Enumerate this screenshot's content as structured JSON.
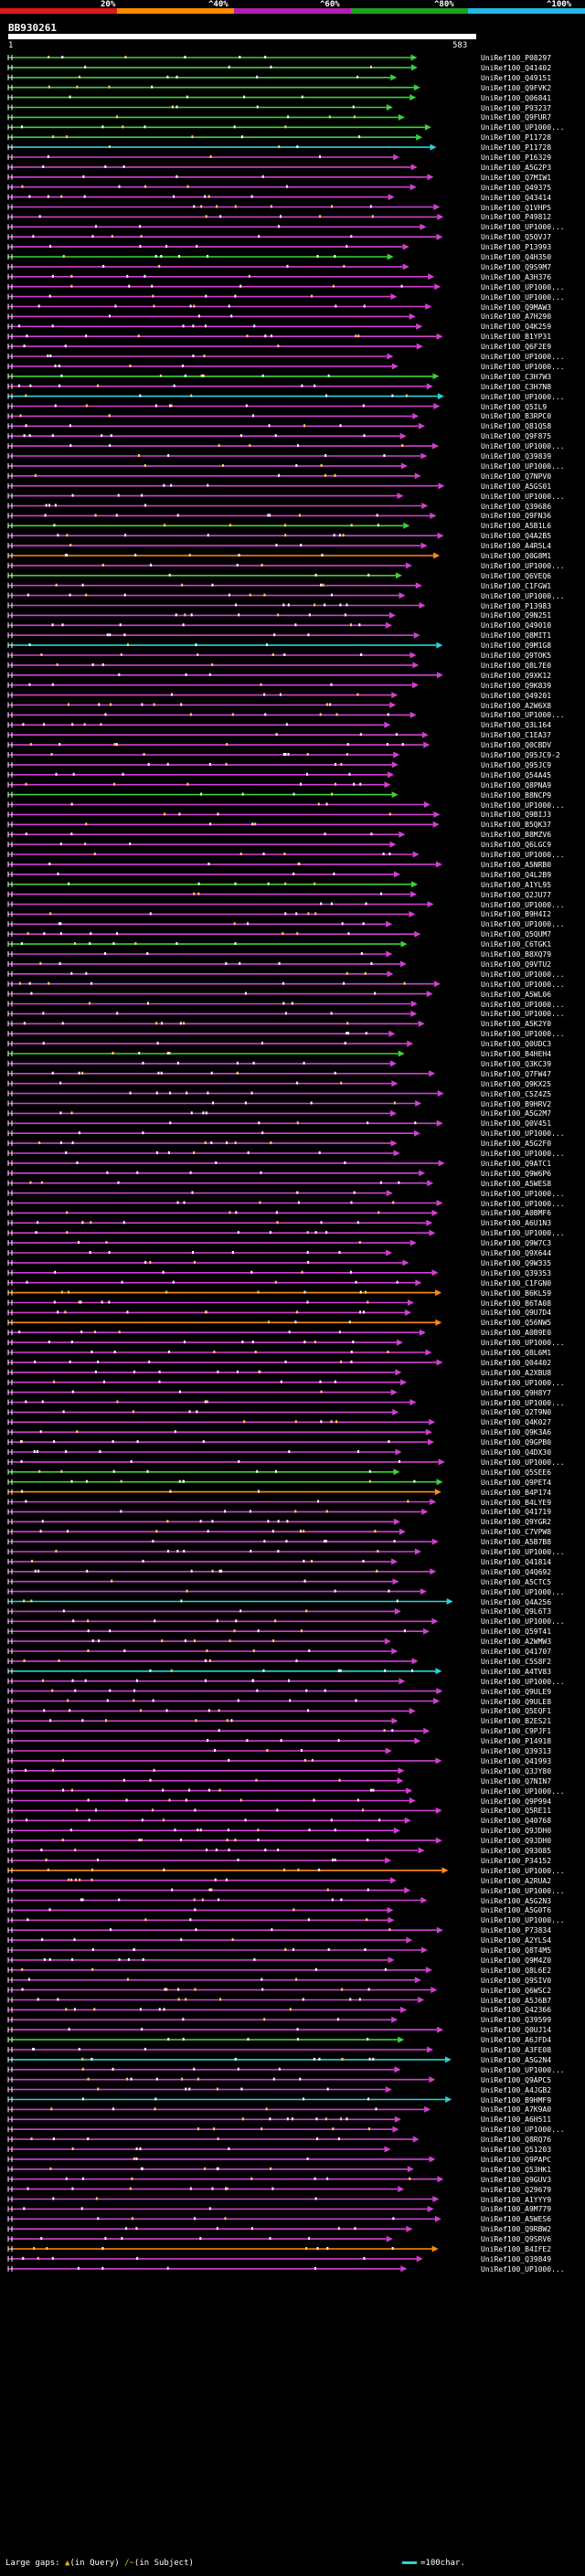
{
  "scale": {
    "labels": [
      "20%",
      "^40%",
      "^60%",
      "^80%",
      "^100%"
    ],
    "colors": [
      "#e01818",
      "#ff8a00",
      "#b020b0",
      "#20a020",
      "#20b8e8"
    ]
  },
  "query": {
    "name": "BB930261",
    "start": "1",
    "end": "583"
  },
  "hits": [
    {
      "label": "UniRef100_P08297",
      "color": "#3ad23a"
    },
    {
      "label": "UniRef100_Q41402",
      "color": "#3ad23a"
    },
    {
      "label": "UniRef100_Q49151",
      "color": "#3ad23a"
    },
    {
      "label": "UniRef100_Q9FVK2",
      "color": "#3ad23a"
    },
    {
      "label": "UniRef100_Q06841",
      "color": "#3ad23a"
    },
    {
      "label": "UniRef100_P93237",
      "color": "#3ad23a"
    },
    {
      "label": "UniRef100_Q9FUR7",
      "color": "#3ad23a"
    },
    {
      "label": "UniRef100_UP1000...",
      "color": "#3ad23a"
    },
    {
      "label": "UniRef100_P11728",
      "color": "#3ad23a"
    },
    {
      "label": "UniRef100_P11728",
      "color": "#2ad4d6"
    },
    {
      "label": "UniRef100_P16329",
      "color": "#d040d0"
    },
    {
      "label": "UniRef100_A5G2P3",
      "color": "#d040d0"
    },
    {
      "label": "UniRef100_Q7MIW1",
      "color": "#d040d0"
    },
    {
      "label": "UniRef100_Q49375",
      "color": "#d040d0"
    },
    {
      "label": "UniRef100_Q43414",
      "color": "#d040d0"
    },
    {
      "label": "UniRef100_Q1VHP5",
      "color": "#d040d0"
    },
    {
      "label": "UniRef100_P49812",
      "color": "#d040d0"
    },
    {
      "label": "UniRef100_UP1000...",
      "color": "#d040d0"
    },
    {
      "label": "UniRef100_Q5QVJ7",
      "color": "#d040d0"
    },
    {
      "label": "UniRef100_P13993",
      "color": "#d040d0"
    },
    {
      "label": "UniRef100_Q4H350",
      "color": "#3ad23a"
    },
    {
      "label": "UniRef100_Q9S9M7",
      "color": "#d040d0"
    },
    {
      "label": "UniRef100_A3H376",
      "color": "#d040d0"
    },
    {
      "label": "UniRef100_UP1000...",
      "color": "#d040d0"
    },
    {
      "label": "UniRef100_UP1000...",
      "color": "#d040d0"
    },
    {
      "label": "UniRef100_Q9MAW3",
      "color": "#d040d0"
    },
    {
      "label": "UniRef100_A7H290",
      "color": "#d040d0"
    },
    {
      "label": "UniRef100_Q4K259",
      "color": "#d040d0"
    },
    {
      "label": "UniRef100_B1YP31",
      "color": "#d040d0"
    },
    {
      "label": "UniRef100_Q6F2E9",
      "color": "#d040d0"
    },
    {
      "label": "UniRef100_UP1000...",
      "color": "#d040d0"
    },
    {
      "label": "UniRef100_UP1000...",
      "color": "#d040d0"
    },
    {
      "label": "UniRef100_C3H7W3",
      "color": "#3ad23a"
    },
    {
      "label": "UniRef100_C3H7N8",
      "color": "#d040d0"
    },
    {
      "label": "UniRef100_UP1000...",
      "color": "#2ad4d6"
    },
    {
      "label": "UniRef100_Q5IL9",
      "color": "#d040d0"
    },
    {
      "label": "UniRef100_B3RPC0",
      "color": "#d040d0"
    },
    {
      "label": "UniRef100_Q81Q58",
      "color": "#d040d0"
    },
    {
      "label": "UniRef100_Q9F875",
      "color": "#d040d0"
    },
    {
      "label": "UniRef100_UP1000...",
      "color": "#d040d0"
    },
    {
      "label": "UniRef100_Q39839",
      "color": "#d040d0"
    },
    {
      "label": "UniRef100_UP1000...",
      "color": "#d040d0"
    },
    {
      "label": "UniRef100_Q7NPV0",
      "color": "#d040d0"
    },
    {
      "label": "UniRef100_A5GS01",
      "color": "#d040d0"
    },
    {
      "label": "UniRef100_UP1000...",
      "color": "#d040d0"
    },
    {
      "label": "UniRef100_Q39686",
      "color": "#d040d0"
    },
    {
      "label": "UniRef100_Q9FN36",
      "color": "#d040d0"
    },
    {
      "label": "UniRef100_A5B1L6",
      "color": "#3ad23a"
    },
    {
      "label": "UniRef100_Q4A2B5",
      "color": "#d040d0"
    },
    {
      "label": "UniRef100_A4R5L4",
      "color": "#d040d0"
    },
    {
      "label": "UniRef100_Q0G8M1",
      "color": "#ff8c1a"
    },
    {
      "label": "UniRef100_UP1000...",
      "color": "#d040d0"
    },
    {
      "label": "UniRef100_Q6VEQ6",
      "color": "#3ad23a"
    },
    {
      "label": "UniRef100_C1FGW1",
      "color": "#d040d0"
    },
    {
      "label": "UniRef100_UP1000...",
      "color": "#d040d0"
    },
    {
      "label": "UniRef100_P13983",
      "color": "#d040d0"
    },
    {
      "label": "UniRef100_Q9N251",
      "color": "#d040d0"
    },
    {
      "label": "UniRef100_Q49010",
      "color": "#d040d0"
    },
    {
      "label": "UniRef100_Q8MIT1",
      "color": "#d040d0"
    },
    {
      "label": "UniRef100_Q9M1G8",
      "color": "#2ad4d6"
    },
    {
      "label": "UniRef100_Q9TOK5",
      "color": "#d040d0"
    },
    {
      "label": "UniRef100_Q8L7E0",
      "color": "#d040d0"
    },
    {
      "label": "UniRef100_Q9XK12",
      "color": "#d040d0"
    },
    {
      "label": "UniRef100_Q9K839",
      "color": "#d040d0"
    },
    {
      "label": "UniRef100_Q49201",
      "color": "#d040d0"
    },
    {
      "label": "UniRef100_A2W6X8",
      "color": "#d040d0"
    },
    {
      "label": "UniRef100_UP1000...",
      "color": "#d040d0"
    },
    {
      "label": "UniRef100_Q3L164",
      "color": "#d040d0"
    },
    {
      "label": "UniRef100_C1EA37",
      "color": "#d040d0"
    },
    {
      "label": "UniRef100_Q0CBDV",
      "color": "#d040d0"
    },
    {
      "label": "UniRef100_Q95JC9-2",
      "color": "#d040d0"
    },
    {
      "label": "UniRef100_Q95JC9",
      "color": "#d040d0"
    },
    {
      "label": "UniRef100_Q54A45",
      "color": "#d040d0"
    },
    {
      "label": "UniRef100_Q8PNA9",
      "color": "#d040d0"
    },
    {
      "label": "UniRef100_B8NCP9",
      "color": "#3ad23a"
    },
    {
      "label": "UniRef100_UP1000...",
      "color": "#d040d0"
    },
    {
      "label": "UniRef100_Q9BIJ3",
      "color": "#d040d0"
    },
    {
      "label": "UniRef100_B5QK37",
      "color": "#d040d0"
    },
    {
      "label": "UniRef100_B8MZV6",
      "color": "#d040d0"
    },
    {
      "label": "UniRef100_Q6LGC9",
      "color": "#d040d0"
    },
    {
      "label": "UniRef100_UP1000...",
      "color": "#d040d0"
    },
    {
      "label": "UniRef100_A5NRB0",
      "color": "#d040d0"
    },
    {
      "label": "UniRef100_Q4L2B9",
      "color": "#d040d0"
    },
    {
      "label": "UniRef100_A1YL95",
      "color": "#3ad23a"
    },
    {
      "label": "UniRef100_Q2JU77",
      "color": "#d040d0"
    },
    {
      "label": "UniRef100_UP1000...",
      "color": "#d040d0"
    },
    {
      "label": "UniRef100_B9H4I2",
      "color": "#d040d0"
    },
    {
      "label": "UniRef100_UP1000...",
      "color": "#d040d0"
    },
    {
      "label": "UniRef100_Q5QUM7",
      "color": "#d040d0"
    },
    {
      "label": "UniRef100_C6TGK1",
      "color": "#3ad23a"
    },
    {
      "label": "UniRef100_B8XQ79",
      "color": "#d040d0"
    },
    {
      "label": "UniRef100_Q9VTU2",
      "color": "#d040d0"
    },
    {
      "label": "UniRef100_UP1000...",
      "color": "#d040d0"
    },
    {
      "label": "UniRef100_UP1000...",
      "color": "#d040d0"
    },
    {
      "label": "UniRef100_A5WL06",
      "color": "#d040d0"
    },
    {
      "label": "UniRef100_UP1000...",
      "color": "#d040d0"
    },
    {
      "label": "UniRef100_UP1000...",
      "color": "#d040d0"
    },
    {
      "label": "UniRef100_A5K2Y0",
      "color": "#d040d0"
    },
    {
      "label": "UniRef100_UP1000...",
      "color": "#d040d0"
    },
    {
      "label": "UniRef100_Q0UDC3",
      "color": "#d040d0"
    },
    {
      "label": "UniRef100_B4HEH4",
      "color": "#3ad23a"
    },
    {
      "label": "UniRef100_Q3KC39",
      "color": "#d040d0"
    },
    {
      "label": "UniRef100_Q7FW47",
      "color": "#d040d0"
    },
    {
      "label": "UniRef100_Q9KX25",
      "color": "#d040d0"
    },
    {
      "label": "UniRef100_C5Z4Z5",
      "color": "#d040d0"
    },
    {
      "label": "UniRef100_B9HRV2",
      "color": "#d040d0"
    },
    {
      "label": "UniRef100_A5G2M7",
      "color": "#d040d0"
    },
    {
      "label": "UniRef100_Q0V451",
      "color": "#d040d0"
    },
    {
      "label": "UniRef100_UP1000...",
      "color": "#d040d0"
    },
    {
      "label": "UniRef100_A5G2F0",
      "color": "#d040d0"
    },
    {
      "label": "UniRef100_UP1000...",
      "color": "#d040d0"
    },
    {
      "label": "UniRef100_Q9ATC1",
      "color": "#d040d0"
    },
    {
      "label": "UniRef100_Q9W6P6",
      "color": "#d040d0"
    },
    {
      "label": "UniRef100_A5WES8",
      "color": "#d040d0"
    },
    {
      "label": "UniRef100_UP1000...",
      "color": "#d040d0"
    },
    {
      "label": "UniRef100_UP1000...",
      "color": "#d040d0"
    },
    {
      "label": "UniRef100_A0BMF6",
      "color": "#d040d0"
    },
    {
      "label": "UniRef100_A6U1N3",
      "color": "#d040d0"
    },
    {
      "label": "UniRef100_UP1000...",
      "color": "#d040d0"
    },
    {
      "label": "UniRef100_Q9W7C3",
      "color": "#d040d0"
    },
    {
      "label": "UniRef100_Q9X644",
      "color": "#d040d0"
    },
    {
      "label": "UniRef100_Q9W335",
      "color": "#d040d0"
    },
    {
      "label": "UniRef100_Q39353",
      "color": "#d040d0"
    },
    {
      "label": "UniRef100_C1FGN0",
      "color": "#d040d0"
    },
    {
      "label": "UniRef100_B6KL59",
      "color": "#ff8c1a"
    },
    {
      "label": "UniRef100_B6TA08",
      "color": "#d040d0"
    },
    {
      "label": "UniRef100_Q9U7D4",
      "color": "#d040d0"
    },
    {
      "label": "UniRef100_Q56NW5",
      "color": "#ff8c1a"
    },
    {
      "label": "UniRef100_A0B9E0",
      "color": "#d040d0"
    },
    {
      "label": "UniRef100_UP1000...",
      "color": "#d040d0"
    },
    {
      "label": "UniRef100_Q8L6M1",
      "color": "#d040d0"
    },
    {
      "label": "UniRef100_Q04402",
      "color": "#d040d0"
    },
    {
      "label": "UniRef100_A2XBU8",
      "color": "#d040d0"
    },
    {
      "label": "UniRef100_UP1000...",
      "color": "#d040d0"
    },
    {
      "label": "UniRef100_Q9H8Y7",
      "color": "#d040d0"
    },
    {
      "label": "UniRef100_UP1000...",
      "color": "#d040d0"
    },
    {
      "label": "UniRef100_Q2T9N0",
      "color": "#d040d0"
    },
    {
      "label": "UniRef100_Q4K027",
      "color": "#d040d0"
    },
    {
      "label": "UniRef100_Q9K3A6",
      "color": "#d040d0"
    },
    {
      "label": "UniRef100_Q9GPB0",
      "color": "#d040d0"
    },
    {
      "label": "UniRef100_Q4DX30",
      "color": "#d040d0"
    },
    {
      "label": "UniRef100_UP1000...",
      "color": "#d040d0"
    },
    {
      "label": "UniRef100_Q5SEE6",
      "color": "#3ad23a"
    },
    {
      "label": "UniRef100_Q9PET4",
      "color": "#3ad23a"
    },
    {
      "label": "UniRef100_B4P174",
      "color": "#ff8c1a"
    },
    {
      "label": "UniRef100_B4LYE9",
      "color": "#d040d0"
    },
    {
      "label": "UniRef100_Q41719",
      "color": "#d040d0"
    },
    {
      "label": "UniRef100_Q9YGR2",
      "color": "#d040d0"
    },
    {
      "label": "UniRef100_C7VPW8",
      "color": "#d040d0"
    },
    {
      "label": "UniRef100_A5B7B8",
      "color": "#d040d0"
    },
    {
      "label": "UniRef100_UP1000...",
      "color": "#d040d0"
    },
    {
      "label": "UniRef100_Q41814",
      "color": "#d040d0"
    },
    {
      "label": "UniRef100_Q4Q692",
      "color": "#d040d0"
    },
    {
      "label": "UniRef100_A5CTC5",
      "color": "#d040d0"
    },
    {
      "label": "UniRef100_UP1000...",
      "color": "#d040d0"
    },
    {
      "label": "UniRef100_Q4A256",
      "color": "#2ad4d6"
    },
    {
      "label": "UniRef100_Q9L6T3",
      "color": "#d040d0"
    },
    {
      "label": "UniRef100_UP1000...",
      "color": "#d040d0"
    },
    {
      "label": "UniRef100_Q59T41",
      "color": "#d040d0"
    },
    {
      "label": "UniRef100_A2WMW3",
      "color": "#d040d0"
    },
    {
      "label": "UniRef100_Q41707",
      "color": "#d040d0"
    },
    {
      "label": "UniRef100_C5S8F2",
      "color": "#d040d0"
    },
    {
      "label": "UniRef100_A4TV83",
      "color": "#2ad4d6"
    },
    {
      "label": "UniRef100_UP1000...",
      "color": "#d040d0"
    },
    {
      "label": "UniRef100_Q9ULE9",
      "color": "#d040d0"
    },
    {
      "label": "UniRef100_Q9ULE8",
      "color": "#d040d0"
    },
    {
      "label": "UniRef100_Q5EQF1",
      "color": "#d040d0"
    },
    {
      "label": "UniRef100_B2ES21",
      "color": "#d040d0"
    },
    {
      "label": "UniRef100_C9PJF1",
      "color": "#d040d0"
    },
    {
      "label": "UniRef100_P14918",
      "color": "#d040d0"
    },
    {
      "label": "UniRef100_Q39313",
      "color": "#d040d0"
    },
    {
      "label": "UniRef100_Q41993",
      "color": "#d040d0"
    },
    {
      "label": "UniRef100_Q3JY80",
      "color": "#d040d0"
    },
    {
      "label": "UniRef100_Q7NIN7",
      "color": "#d040d0"
    },
    {
      "label": "UniRef100_UP1000...",
      "color": "#d040d0"
    },
    {
      "label": "UniRef100_Q9P994",
      "color": "#d040d0"
    },
    {
      "label": "UniRef100_Q5RE11",
      "color": "#d040d0"
    },
    {
      "label": "UniRef100_Q40768",
      "color": "#d040d0"
    },
    {
      "label": "UniRef100_Q9JDH0",
      "color": "#d040d0"
    },
    {
      "label": "UniRef100_Q9JDH0",
      "color": "#d040d0"
    },
    {
      "label": "UniRef100_Q93085",
      "color": "#d040d0"
    },
    {
      "label": "UniRef100_P34152",
      "color": "#d040d0"
    },
    {
      "label": "UniRef100_UP1000...",
      "color": "#ff8c1a"
    },
    {
      "label": "UniRef100_A2RUA2",
      "color": "#d040d0"
    },
    {
      "label": "UniRef100_UP1000...",
      "color": "#d040d0"
    },
    {
      "label": "UniRef100_A5G2N3",
      "color": "#d040d0"
    },
    {
      "label": "UniRef100_A5G0T6",
      "color": "#d040d0"
    },
    {
      "label": "UniRef100_UP1000...",
      "color": "#d040d0"
    },
    {
      "label": "UniRef100_P73834",
      "color": "#d040d0"
    },
    {
      "label": "UniRef100_A2YLS4",
      "color": "#d040d0"
    },
    {
      "label": "UniRef100_Q8T4M5",
      "color": "#d040d0"
    },
    {
      "label": "UniRef100_Q9M4Z0",
      "color": "#d040d0"
    },
    {
      "label": "UniRef100_Q8L6E2",
      "color": "#d040d0"
    },
    {
      "label": "UniRef100_Q9SIV0",
      "color": "#d040d0"
    },
    {
      "label": "UniRef100_Q6WSC2",
      "color": "#d040d0"
    },
    {
      "label": "UniRef100_A5J6B7",
      "color": "#d040d0"
    },
    {
      "label": "UniRef100_Q42366",
      "color": "#d040d0"
    },
    {
      "label": "UniRef100_Q39599",
      "color": "#d040d0"
    },
    {
      "label": "UniRef100_Q0UJ14",
      "color": "#d040d0"
    },
    {
      "label": "UniRef100_A6JFD4",
      "color": "#3ad23a"
    },
    {
      "label": "UniRef100_A3FE08",
      "color": "#d040d0"
    },
    {
      "label": "UniRef100_A5G2N4",
      "color": "#2ad4d6"
    },
    {
      "label": "UniRef100_UP1000...",
      "color": "#d040d0"
    },
    {
      "label": "UniRef100_Q9APC5",
      "color": "#d040d0"
    },
    {
      "label": "UniRef100_A4JGB2",
      "color": "#d040d0"
    },
    {
      "label": "UniRef100_B9HMF9",
      "color": "#2ad4d6"
    },
    {
      "label": "UniRef100_A7K9A0",
      "color": "#d040d0"
    },
    {
      "label": "UniRef100_A6H511",
      "color": "#d040d0"
    },
    {
      "label": "UniRef100_UP1000...",
      "color": "#d040d0"
    },
    {
      "label": "UniRef100_Q8RQ76",
      "color": "#d040d0"
    },
    {
      "label": "UniRef100_Q51203",
      "color": "#d040d0"
    },
    {
      "label": "UniRef100_Q9PAPC",
      "color": "#d040d0"
    },
    {
      "label": "UniRef100_Q53HK1",
      "color": "#d040d0"
    },
    {
      "label": "UniRef100_Q9GUV3",
      "color": "#d040d0"
    },
    {
      "label": "UniRef100_Q29679",
      "color": "#d040d0"
    },
    {
      "label": "UniRef100_A1YYY9",
      "color": "#d040d0"
    },
    {
      "label": "UniRef100_A9M779",
      "color": "#d040d0"
    },
    {
      "label": "UniRef100_A5WES6",
      "color": "#d040d0"
    },
    {
      "label": "UniRef100_Q9RBW2",
      "color": "#d040d0"
    },
    {
      "label": "UniRef100_Q9SRV6",
      "color": "#d040d0"
    },
    {
      "label": "UniRef100_B4IFE2",
      "color": "#ff8c1a"
    },
    {
      "label": "UniRef100_Q39849",
      "color": "#d040d0"
    },
    {
      "label": "UniRef100_UP1000...",
      "color": "#d040d0"
    }
  ],
  "legend": {
    "prefix": "Large gaps:",
    "query_mark": "▲",
    "query_text": "(in Query)",
    "subject_mark": "/~",
    "subject_text": "(in Subject)",
    "scale_text": "=100char."
  }
}
